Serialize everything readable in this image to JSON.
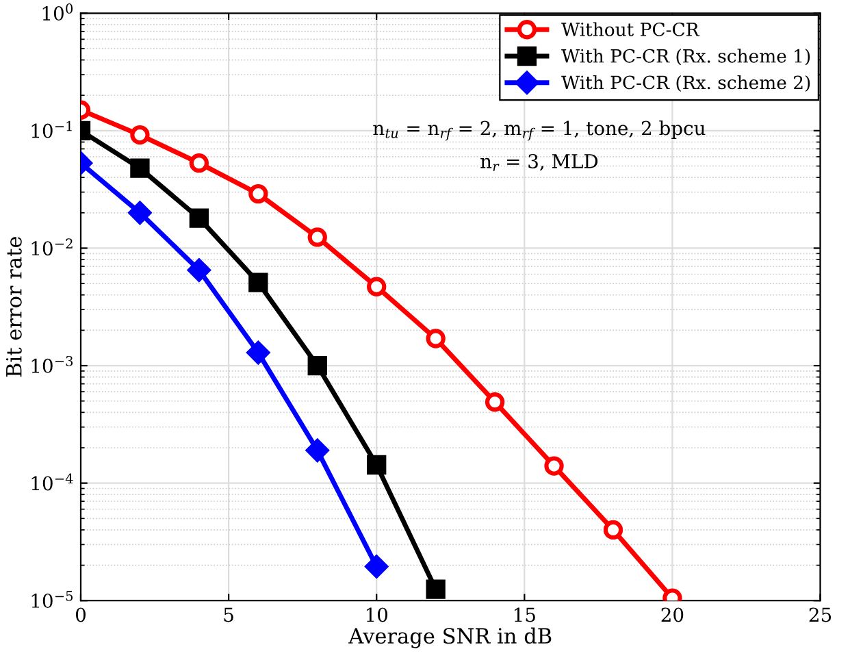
{
  "chart_data": {
    "type": "line",
    "xlabel": "Average SNR in dB",
    "ylabel": "Bit error rate",
    "x": [
      0,
      2,
      4,
      6,
      8,
      10,
      12,
      14,
      16,
      18,
      20
    ],
    "series": [
      {
        "name": "Without PC-CR",
        "color": "#ff0000",
        "marker": "circle",
        "values": [
          0.15,
          0.092,
          0.053,
          0.029,
          0.0124,
          0.0047,
          0.0017,
          0.00049,
          0.00014,
          4e-05,
          1.05e-05
        ]
      },
      {
        "name": "With PC-CR (Rx. scheme 1)",
        "color": "#000000",
        "marker": "square",
        "values": [
          0.1,
          0.048,
          0.018,
          0.0051,
          0.001,
          0.000143,
          1.25e-05,
          null,
          null,
          null,
          null
        ]
      },
      {
        "name": "With PC-CR (Rx. scheme 2)",
        "color": "#0000ff",
        "marker": "diamond",
        "values": [
          0.053,
          0.02,
          0.0065,
          0.00129,
          0.00019,
          1.95e-05,
          null,
          null,
          null,
          null,
          null
        ]
      }
    ],
    "annotations": [
      "n$_{tu}$ = n$_{rf}$ = 2, m$_{rf}$ = 1, tone, 2 bpcu",
      "n$_{r}$ = 3, MLD"
    ],
    "log": "y",
    "xlim": [
      0,
      25
    ],
    "xticks": [
      0,
      5,
      10,
      15,
      20,
      25
    ],
    "ylim": [
      1e-05,
      1
    ],
    "yticks": [
      {
        "value": 1e-05,
        "label": "10$^{−5}$"
      },
      {
        "value": 0.0001,
        "label": "10$^{−4}$"
      },
      {
        "value": 0.001,
        "label": "10$^{−3}$"
      },
      {
        "value": 0.01,
        "label": "10$^{−2}$"
      },
      {
        "value": 0.1,
        "label": "10$^{−1}$"
      },
      {
        "value": 1,
        "label": "10$^{0}$"
      }
    ],
    "grid": true,
    "legend": "top right",
    "line_style": "solid"
  }
}
